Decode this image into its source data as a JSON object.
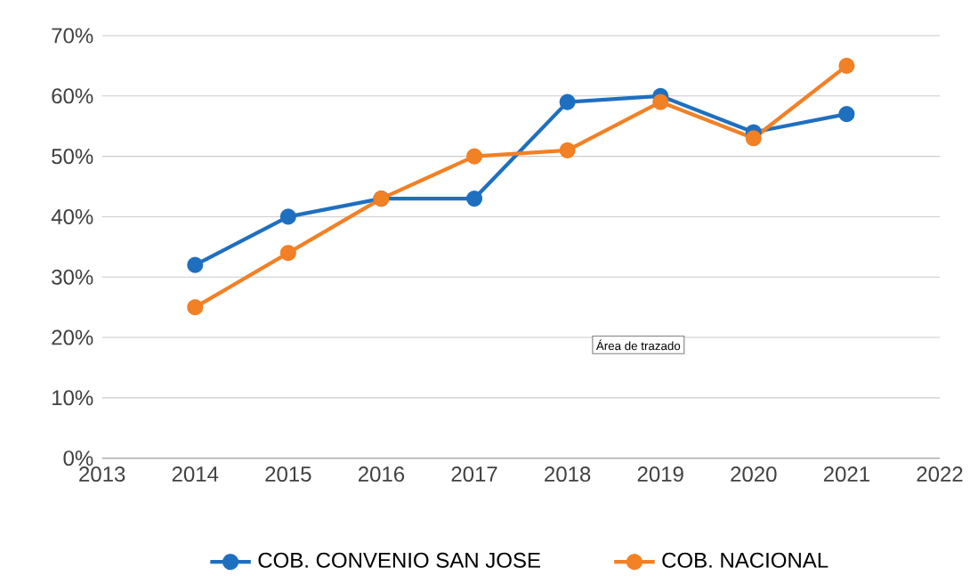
{
  "chart_data": {
    "type": "line",
    "x": [
      2014,
      2015,
      2016,
      2017,
      2018,
      2019,
      2020,
      2021
    ],
    "series": [
      {
        "name": "COB. CONVENIO SAN JOSE",
        "color": "#1f6fc0",
        "values": [
          32,
          40,
          43,
          43,
          59,
          60,
          54,
          57
        ]
      },
      {
        "name": "COB. NACIONAL",
        "color": "#f28025",
        "values": [
          25,
          34,
          43,
          50,
          51,
          59,
          53,
          65
        ]
      }
    ],
    "xlim": [
      2013,
      2022
    ],
    "xticks": [
      2013,
      2014,
      2015,
      2016,
      2017,
      2018,
      2019,
      2020,
      2021,
      2022
    ],
    "ylim": [
      0,
      70
    ],
    "yticks": [
      {
        "value": 0,
        "label": "0%"
      },
      {
        "value": 10,
        "label": "10%"
      },
      {
        "value": 20,
        "label": "20%"
      },
      {
        "value": 30,
        "label": "30%"
      },
      {
        "value": 40,
        "label": "40%"
      },
      {
        "value": 50,
        "label": "50%"
      },
      {
        "value": 60,
        "label": "60%"
      },
      {
        "value": 70,
        "label": "70%"
      }
    ],
    "grid": "y",
    "legend": "bottom",
    "marker": "circle",
    "line_style": "solid",
    "annotations": [
      "Área de trazado"
    ]
  }
}
